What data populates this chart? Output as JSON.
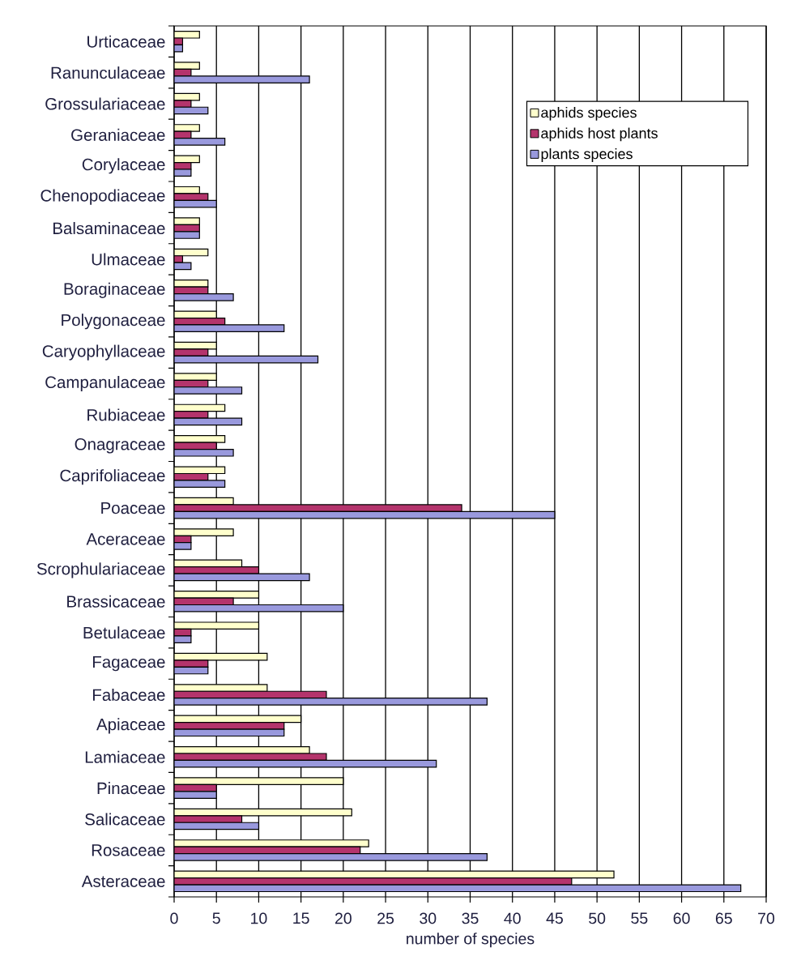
{
  "chart_data": {
    "type": "bar",
    "orientation": "horizontal",
    "xlabel": "number of species",
    "categories": [
      "Urticaceae",
      "Ranunculaceae",
      "Grossulariaceae",
      "Geraniaceae",
      "Corylaceae",
      "Chenopodiaceae",
      "Balsaminaceae",
      "Ulmaceae",
      "Boraginaceae",
      "Polygonaceae",
      "Caryophyllaceae",
      "Campanulaceae",
      "Rubiaceae",
      "Onagraceae",
      "Caprifoliaceae",
      "Poaceae",
      "Aceraceae",
      "Scrophulariaceae",
      "Brassicaceae",
      "Betulaceae",
      "Fagaceae",
      "Fabaceae",
      "Apiaceae",
      "Lamiaceae",
      "Pinaceae",
      "Salicaceae",
      "Rosaceae",
      "Asteraceae"
    ],
    "series": [
      {
        "name": "aphids species",
        "color": "#ffffcc",
        "values": [
          3,
          3,
          3,
          3,
          3,
          3,
          3,
          4,
          4,
          5,
          5,
          5,
          6,
          6,
          6,
          7,
          7,
          8,
          10,
          10,
          11,
          11,
          15,
          16,
          20,
          21,
          23,
          52
        ]
      },
      {
        "name": "aphids host plants",
        "color": "#b4346c",
        "values": [
          1,
          2,
          2,
          2,
          2,
          4,
          3,
          1,
          4,
          6,
          4,
          4,
          4,
          5,
          4,
          34,
          2,
          10,
          7,
          2,
          4,
          18,
          13,
          18,
          5,
          8,
          22,
          47
        ]
      },
      {
        "name": "plants species",
        "color": "#9999dd",
        "values": [
          1,
          16,
          4,
          6,
          2,
          5,
          3,
          2,
          7,
          13,
          17,
          8,
          8,
          7,
          6,
          45,
          2,
          16,
          20,
          2,
          4,
          37,
          13,
          31,
          5,
          10,
          37,
          67
        ]
      }
    ],
    "xlim": [
      0,
      70
    ],
    "xticks": [
      0,
      5,
      10,
      15,
      20,
      25,
      30,
      35,
      40,
      45,
      50,
      55,
      60,
      65,
      70
    ],
    "grid": "x",
    "legend": "top right"
  }
}
